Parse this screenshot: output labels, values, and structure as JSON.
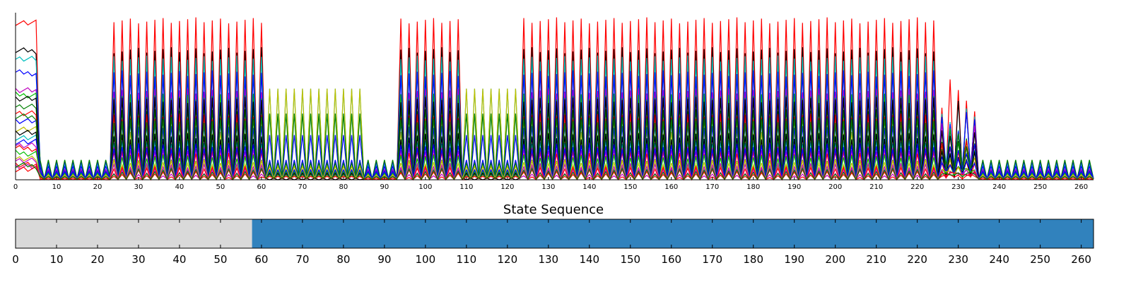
{
  "chart_data": [
    {
      "type": "line",
      "title": "",
      "xlabel": "",
      "ylabel": "",
      "xlim": [
        0,
        263
      ],
      "ylim": [
        0,
        1
      ],
      "x_ticks": [
        0,
        10,
        20,
        30,
        40,
        50,
        60,
        70,
        80,
        90,
        100,
        110,
        120,
        130,
        140,
        150,
        160,
        170,
        180,
        190,
        200,
        210,
        220,
        230,
        240,
        250,
        260
      ],
      "y_ticks": [],
      "grid": false,
      "legend": "none",
      "n_points": 264,
      "activity_segments": [
        {
          "x": [
            0,
            6
          ],
          "kind": "sustained"
        },
        {
          "x": [
            6,
            23
          ],
          "kind": "low_oscillating"
        },
        {
          "x": [
            23,
            61
          ],
          "kind": "high_periodic",
          "period": 2
        },
        {
          "x": [
            61,
            85
          ],
          "kind": "mid_periodic",
          "period": 2
        },
        {
          "x": [
            85,
            94
          ],
          "kind": "low_oscillating"
        },
        {
          "x": [
            94,
            110
          ],
          "kind": "high_periodic",
          "period": 2
        },
        {
          "x": [
            110,
            124
          ],
          "kind": "mid_periodic",
          "period": 2
        },
        {
          "x": [
            124,
            226
          ],
          "kind": "high_periodic",
          "period": 2
        },
        {
          "x": [
            226,
            235
          ],
          "kind": "irregular"
        },
        {
          "x": [
            235,
            263
          ],
          "kind": "low_oscillating"
        }
      ],
      "series": [
        {
          "color": "#ff0000",
          "peak": 0.98,
          "mid": 0.0,
          "low": 0.0
        },
        {
          "color": "#000000",
          "peak": 0.8,
          "mid": 0.0,
          "low": 0.06
        },
        {
          "color": "#00bfbf",
          "peak": 0.75,
          "mid": 0.55,
          "low": 0.1
        },
        {
          "color": "#0000ff",
          "peak": 0.66,
          "mid": 0.27,
          "low": 0.11
        },
        {
          "color": "#bf00bf",
          "peak": 0.55,
          "mid": 0.06,
          "low": 0.06
        },
        {
          "color": "#00bf00",
          "peak": 0.52,
          "mid": 0.05,
          "low": 0.05
        },
        {
          "color": "#bfbf00",
          "peak": 0.3,
          "mid": 0.55,
          "low": 0.03
        },
        {
          "color": "#008000",
          "peak": 0.45,
          "mid": 0.4,
          "low": 0.12
        },
        {
          "color": "#ff0000",
          "peak": 0.4,
          "mid": 0.03,
          "low": 0.02
        },
        {
          "color": "#000000",
          "peak": 0.5,
          "mid": 0.04,
          "low": 0.03
        },
        {
          "color": "#0000ff",
          "peak": 0.35,
          "mid": 0.12,
          "low": 0.08
        },
        {
          "color": "#00bfbf",
          "peak": 0.25,
          "mid": 0.05,
          "low": 0.04
        },
        {
          "color": "#008000",
          "peak": 0.38,
          "mid": 0.1,
          "low": 0.05
        },
        {
          "color": "#bf00bf",
          "peak": 0.2,
          "mid": 0.04,
          "low": 0.03
        },
        {
          "color": "#ff0000",
          "peak": 0.18,
          "mid": 0.03,
          "low": 0.02
        },
        {
          "color": "#000000",
          "peak": 0.28,
          "mid": 0.04,
          "low": 0.02
        },
        {
          "color": "#00bf00",
          "peak": 0.15,
          "mid": 0.05,
          "low": 0.04
        },
        {
          "color": "#0000ff",
          "peak": 0.22,
          "mid": 0.06,
          "low": 0.05
        },
        {
          "color": "#bfbf00",
          "peak": 0.12,
          "mid": 0.08,
          "low": 0.03
        },
        {
          "color": "#bf00bf",
          "peak": 0.1,
          "mid": 0.03,
          "low": 0.02
        },
        {
          "color": "#ff0000",
          "peak": 0.08,
          "mid": 0.02,
          "low": 0.01
        },
        {
          "color": "#bf00bf",
          "peak": 0.06,
          "mid": 0.03,
          "low": 0.02
        },
        {
          "color": "#ff0000",
          "peak": 0.05,
          "mid": 0.02,
          "low": 0.01
        },
        {
          "color": "#008000",
          "peak": 0.07,
          "mid": 0.03,
          "low": 0.02
        }
      ]
    },
    {
      "type": "bar",
      "title": "State Sequence",
      "xlabel": "",
      "ylabel": "",
      "xlim": [
        0,
        263
      ],
      "x_ticks": [
        0,
        10,
        20,
        30,
        40,
        50,
        60,
        70,
        80,
        90,
        100,
        110,
        120,
        130,
        140,
        150,
        160,
        170,
        180,
        190,
        200,
        210,
        220,
        230,
        240,
        250,
        260
      ],
      "grid": false,
      "legend": "none",
      "segments": [
        {
          "start": 0,
          "end": 57.7,
          "color": "#d9d9d9"
        },
        {
          "start": 57.7,
          "end": 263,
          "color": "#3182bd"
        }
      ]
    }
  ]
}
